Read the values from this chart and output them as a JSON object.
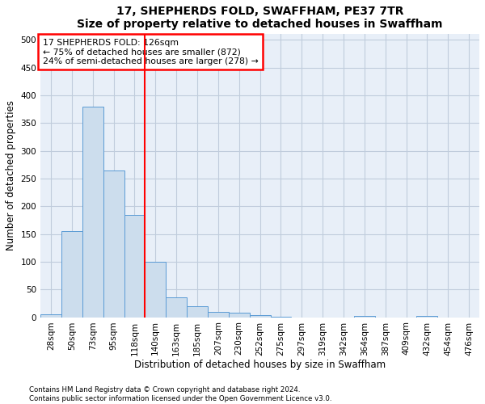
{
  "title": "17, SHEPHERDS FOLD, SWAFFHAM, PE37 7TR",
  "subtitle": "Size of property relative to detached houses in Swaffham",
  "xlabel": "Distribution of detached houses by size in Swaffham",
  "ylabel": "Number of detached properties",
  "footnote1": "Contains HM Land Registry data © Crown copyright and database right 2024.",
  "footnote2": "Contains public sector information licensed under the Open Government Licence v3.0.",
  "annotation_title": "17 SHEPHERDS FOLD: 126sqm",
  "annotation_line1": "← 75% of detached houses are smaller (872)",
  "annotation_line2": "24% of semi-detached houses are larger (278) →",
  "bar_labels": [
    "28sqm",
    "50sqm",
    "73sqm",
    "95sqm",
    "118sqm",
    "140sqm",
    "163sqm",
    "185sqm",
    "207sqm",
    "230sqm",
    "252sqm",
    "275sqm",
    "297sqm",
    "319sqm",
    "342sqm",
    "364sqm",
    "387sqm",
    "409sqm",
    "432sqm",
    "454sqm",
    "476sqm"
  ],
  "bar_values": [
    5,
    155,
    380,
    265,
    185,
    100,
    35,
    20,
    10,
    8,
    3,
    1,
    0,
    0,
    0,
    2,
    0,
    0,
    2,
    0,
    0
  ],
  "bar_color": "#ccdded",
  "bar_edge_color": "#5b9bd5",
  "vline_x": 4.5,
  "vline_color": "red",
  "ylim": [
    0,
    510
  ],
  "yticks": [
    0,
    50,
    100,
    150,
    200,
    250,
    300,
    350,
    400,
    450,
    500
  ],
  "plot_bg_color": "#e8eff8",
  "grid_color": "#c0ccdc",
  "title_fontsize": 10,
  "axis_fontsize": 8.5,
  "tick_fontsize": 7.5,
  "footnote_fontsize": 6.2
}
